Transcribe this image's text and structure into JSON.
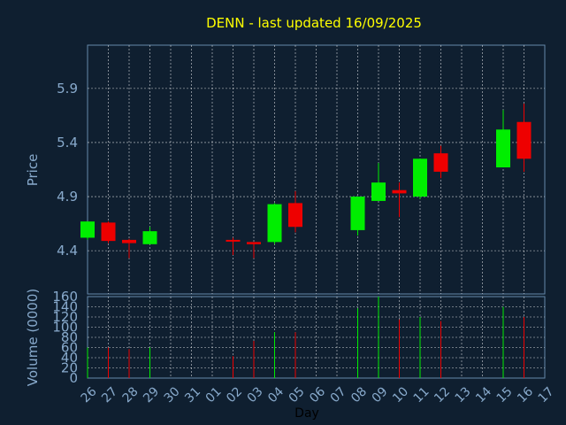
{
  "chart_data": {
    "type": "candlestick",
    "title": "DENN - last updated 16/09/2025",
    "xlabel": "Day",
    "price_panel": {
      "ylabel": "Price",
      "yticks": [
        4.4,
        4.9,
        5.4,
        5.9
      ],
      "ylim": [
        4.0,
        6.3
      ],
      "grid": true
    },
    "volume_panel": {
      "ylabel": "Volume (0000)",
      "yticks": [
        0,
        20,
        40,
        60,
        80,
        100,
        120,
        140,
        160
      ],
      "ylim": [
        0,
        160
      ],
      "grid": true
    },
    "days": [
      "26",
      "27",
      "28",
      "29",
      "30",
      "31",
      "01",
      "02",
      "03",
      "04",
      "05",
      "06",
      "07",
      "08",
      "09",
      "10",
      "11",
      "12",
      "13",
      "14",
      "15",
      "16",
      "17"
    ],
    "candles": [
      {
        "day": "26",
        "open": 4.52,
        "high": 4.67,
        "low": 4.5,
        "close": 4.67,
        "volume": 60
      },
      {
        "day": "27",
        "open": 4.66,
        "high": 4.67,
        "low": 4.47,
        "close": 4.49,
        "volume": 60
      },
      {
        "day": "28",
        "open": 4.5,
        "high": 4.51,
        "low": 4.33,
        "close": 4.47,
        "volume": 57
      },
      {
        "day": "29",
        "open": 4.46,
        "high": 4.62,
        "low": 4.46,
        "close": 4.58,
        "volume": 60
      },
      {
        "day": "02",
        "open": 4.5,
        "high": 4.52,
        "low": 4.36,
        "close": 4.49,
        "volume": 43
      },
      {
        "day": "03",
        "open": 4.48,
        "high": 4.48,
        "low": 4.33,
        "close": 4.46,
        "volume": 73
      },
      {
        "day": "04",
        "open": 4.48,
        "high": 4.84,
        "low": 4.46,
        "close": 4.83,
        "volume": 90
      },
      {
        "day": "05",
        "open": 4.84,
        "high": 4.95,
        "low": 4.57,
        "close": 4.62,
        "volume": 90
      },
      {
        "day": "08",
        "open": 4.59,
        "high": 4.9,
        "low": 4.54,
        "close": 4.9,
        "volume": 137
      },
      {
        "day": "09",
        "open": 4.86,
        "high": 5.21,
        "low": 4.86,
        "close": 5.03,
        "volume": 160
      },
      {
        "day": "10",
        "open": 4.96,
        "high": 5.03,
        "low": 4.71,
        "close": 4.93,
        "volume": 115
      },
      {
        "day": "11",
        "open": 4.9,
        "high": 5.25,
        "low": 4.88,
        "close": 5.25,
        "volume": 120
      },
      {
        "day": "12",
        "open": 5.3,
        "high": 5.37,
        "low": 5.07,
        "close": 5.13,
        "volume": 112
      },
      {
        "day": "15",
        "open": 5.17,
        "high": 5.7,
        "low": 5.17,
        "close": 5.52,
        "volume": 140
      },
      {
        "day": "16",
        "open": 5.59,
        "high": 5.76,
        "low": 5.13,
        "close": 5.25,
        "volume": 120
      }
    ],
    "colors": {
      "background": "#0f1f30",
      "axis": "#6688aa",
      "grid": "#ffffff",
      "up": "#00ee00",
      "down": "#ee0000",
      "title": "#ffff00",
      "tick_text": "#88aacc"
    }
  }
}
